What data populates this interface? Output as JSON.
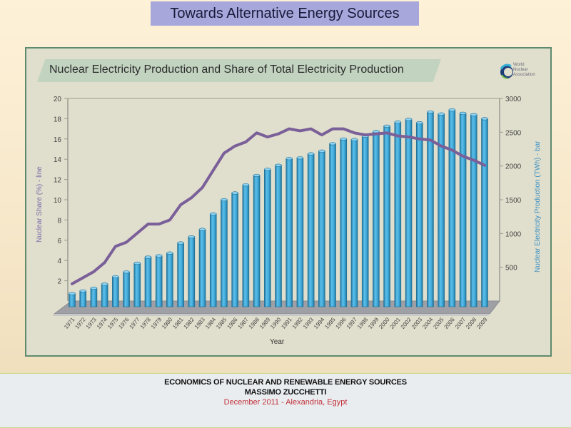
{
  "slide": {
    "title": "Towards Alternative Energy Sources"
  },
  "logo": {
    "lines": [
      "World",
      "Nuclear",
      "Association"
    ]
  },
  "footer": {
    "line1": "ECONOMICS OF NUCLEAR AND RENEWABLE ENERGY SOURCES",
    "line2": "MASSIMO ZUCCHETTI",
    "line3": "December 2011 - Alexandria, Egypt"
  },
  "colors": {
    "bar": "#3fa8d8",
    "bar_dark": "#1f6f95",
    "line": "#7a5f99",
    "left_axis_label": "#7a6aa8",
    "right_axis_label": "#3a8fc4"
  },
  "chart_data": {
    "type": "bar",
    "title": "Nuclear Electricity Production and Share of Total Electricity Production",
    "xlabel": "Year",
    "ylabel_left": "Nuclear Share (%) - line",
    "ylabel_right": "Nuclear Electricity Production (TWh) - bar",
    "ylim_left": [
      0,
      20
    ],
    "ylim_right": [
      0,
      3000
    ],
    "yticks_left": [
      2,
      4,
      6,
      8,
      10,
      12,
      14,
      16,
      18,
      20
    ],
    "yticks_right": [
      500,
      1000,
      1500,
      2000,
      2500,
      3000
    ],
    "grid": false,
    "categories": [
      "1971",
      "1972",
      "1973",
      "1974",
      "1975",
      "1976",
      "1977",
      "1978",
      "1979",
      "1980",
      "1981",
      "1982",
      "1983",
      "1984",
      "1985",
      "1986",
      "1987",
      "1988",
      "1989",
      "1990",
      "1991",
      "1992",
      "1993",
      "1994",
      "1995",
      "1996",
      "1997",
      "1998",
      "1999",
      "2000",
      "2001",
      "2002",
      "2003",
      "2004",
      "2005",
      "2006",
      "2007",
      "2008",
      "2009"
    ],
    "series": [
      {
        "name": "Nuclear Electricity Production (TWh)",
        "type": "bar",
        "axis": "right",
        "values": [
          110,
          150,
          190,
          250,
          360,
          430,
          560,
          650,
          670,
          710,
          860,
          950,
          1060,
          1290,
          1500,
          1600,
          1720,
          1860,
          1950,
          2010,
          2110,
          2120,
          2180,
          2220,
          2330,
          2400,
          2390,
          2440,
          2510,
          2590,
          2650,
          2690,
          2640,
          2800,
          2770,
          2830,
          2780,
          2760,
          2700
        ]
      },
      {
        "name": "Nuclear Share (%)",
        "type": "line",
        "axis": "left",
        "values": [
          1.7,
          2.3,
          2.9,
          3.8,
          5.4,
          5.8,
          6.7,
          7.6,
          7.6,
          8.0,
          9.5,
          10.2,
          11.2,
          12.9,
          14.6,
          15.3,
          15.7,
          16.6,
          16.2,
          16.5,
          17.0,
          16.8,
          17.0,
          16.4,
          17.0,
          17.0,
          16.6,
          16.4,
          16.5,
          16.6,
          16.3,
          16.2,
          16.0,
          15.9,
          15.3,
          14.9,
          14.3,
          13.9,
          13.4
        ]
      }
    ]
  }
}
